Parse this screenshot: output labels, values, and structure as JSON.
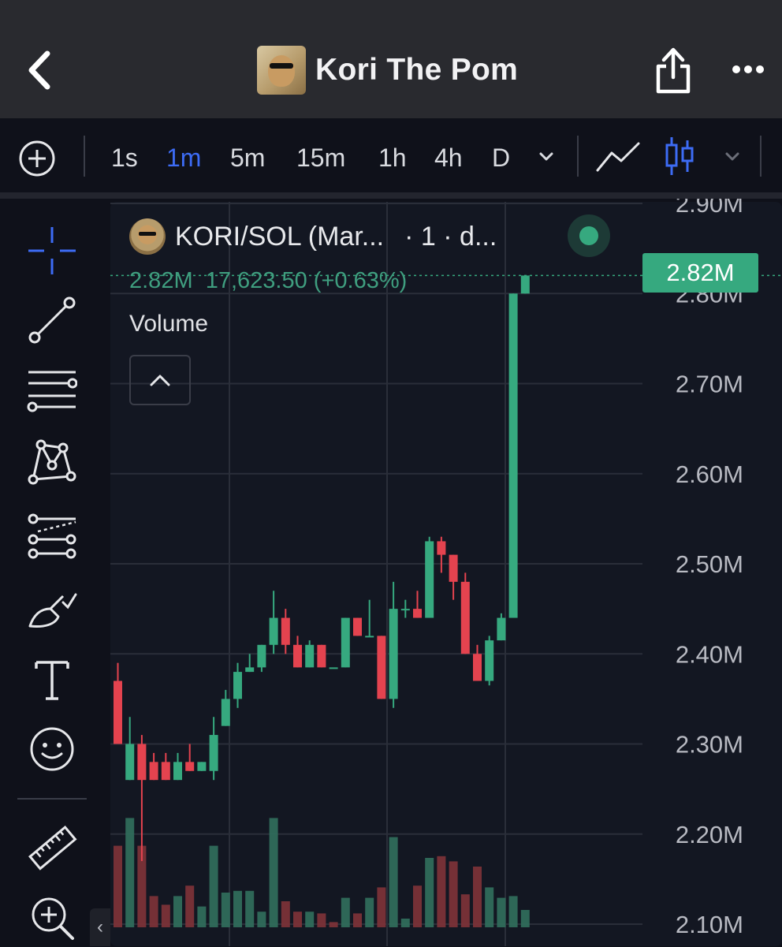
{
  "header": {
    "title": "Kori The Pom",
    "icons": {
      "back": "chevron-left-icon",
      "share": "share-icon",
      "more": "more-horizontal-icon"
    }
  },
  "toolbar": {
    "timeframes": [
      {
        "label": "1s",
        "active": false
      },
      {
        "label": "1m",
        "active": true
      },
      {
        "label": "5m",
        "active": false
      },
      {
        "label": "15m",
        "active": false
      },
      {
        "label": "1h",
        "active": false
      },
      {
        "label": "4h",
        "active": false
      },
      {
        "label": "D",
        "active": false
      }
    ],
    "icons": [
      "plus-circle-icon",
      "chevron-down-icon",
      "line-chart-icon",
      "candlestick-icon",
      "chevron-down-icon"
    ]
  },
  "tools": [
    "crosshair-icon",
    "trend-line-icon",
    "horizontal-lines-icon",
    "pattern-icon",
    "fib-icon",
    "brush-icon",
    "text-icon",
    "emoji-icon",
    "ruler-icon",
    "zoom-in-icon"
  ],
  "legend": {
    "symbol": "KORI/SOL (Mar...",
    "interval": "· 1 · d...",
    "price": "2.82M",
    "change": "17,623.50 (+0.63%)",
    "volume_label": "Volume"
  },
  "last_price": "2.82M",
  "colors": {
    "up": "#36a97f",
    "down": "#e4434f",
    "active": "#3d6cf5",
    "background": "#131722"
  },
  "chart_data": {
    "type": "candlestick",
    "y_ticks": [
      "2.90M",
      "2.80M",
      "2.70M",
      "2.60M",
      "2.50M",
      "2.40M",
      "2.30M",
      "2.20M",
      "2.10M"
    ],
    "ylim": [
      2.1,
      2.92
    ],
    "candles": [
      {
        "o": 2.37,
        "h": 2.39,
        "l": 2.3,
        "c": 2.3
      },
      {
        "o": 2.26,
        "h": 2.33,
        "l": 2.26,
        "c": 2.3
      },
      {
        "o": 2.3,
        "h": 2.31,
        "l": 2.17,
        "c": 2.26
      },
      {
        "o": 2.28,
        "h": 2.29,
        "l": 2.26,
        "c": 2.26
      },
      {
        "o": 2.28,
        "h": 2.29,
        "l": 2.26,
        "c": 2.26
      },
      {
        "o": 2.26,
        "h": 2.29,
        "l": 2.26,
        "c": 2.28
      },
      {
        "o": 2.28,
        "h": 2.3,
        "l": 2.27,
        "c": 2.27
      },
      {
        "o": 2.27,
        "h": 2.28,
        "l": 2.27,
        "c": 2.28
      },
      {
        "o": 2.27,
        "h": 2.33,
        "l": 2.26,
        "c": 2.31
      },
      {
        "o": 2.32,
        "h": 2.36,
        "l": 2.32,
        "c": 2.35
      },
      {
        "o": 2.35,
        "h": 2.39,
        "l": 2.34,
        "c": 2.38
      },
      {
        "o": 2.38,
        "h": 2.4,
        "l": 2.38,
        "c": 2.385
      },
      {
        "o": 2.385,
        "h": 2.41,
        "l": 2.38,
        "c": 2.41
      },
      {
        "o": 2.41,
        "h": 2.47,
        "l": 2.4,
        "c": 2.44
      },
      {
        "o": 2.44,
        "h": 2.45,
        "l": 2.4,
        "c": 2.41
      },
      {
        "o": 2.41,
        "h": 2.42,
        "l": 2.385,
        "c": 2.385
      },
      {
        "o": 2.385,
        "h": 2.415,
        "l": 2.385,
        "c": 2.41
      },
      {
        "o": 2.41,
        "h": 2.41,
        "l": 2.385,
        "c": 2.385
      },
      {
        "o": 2.385,
        "h": 2.385,
        "l": 2.385,
        "c": 2.385
      },
      {
        "o": 2.385,
        "h": 2.44,
        "l": 2.385,
        "c": 2.44
      },
      {
        "o": 2.44,
        "h": 2.44,
        "l": 2.42,
        "c": 2.42
      },
      {
        "o": 2.42,
        "h": 2.46,
        "l": 2.42,
        "c": 2.42
      },
      {
        "o": 2.42,
        "h": 2.42,
        "l": 2.35,
        "c": 2.35
      },
      {
        "o": 2.35,
        "h": 2.48,
        "l": 2.34,
        "c": 2.45
      },
      {
        "o": 2.45,
        "h": 2.46,
        "l": 2.44,
        "c": 2.45
      },
      {
        "o": 2.45,
        "h": 2.47,
        "l": 2.44,
        "c": 2.44
      },
      {
        "o": 2.44,
        "h": 2.53,
        "l": 2.44,
        "c": 2.525
      },
      {
        "o": 2.525,
        "h": 2.53,
        "l": 2.49,
        "c": 2.51
      },
      {
        "o": 2.51,
        "h": 2.51,
        "l": 2.46,
        "c": 2.48
      },
      {
        "o": 2.48,
        "h": 2.49,
        "l": 2.4,
        "c": 2.4
      },
      {
        "o": 2.4,
        "h": 2.41,
        "l": 2.37,
        "c": 2.37
      },
      {
        "o": 2.37,
        "h": 2.42,
        "l": 2.365,
        "c": 2.415
      },
      {
        "o": 2.415,
        "h": 2.445,
        "l": 2.415,
        "c": 2.44
      },
      {
        "o": 2.44,
        "h": 2.8,
        "l": 2.44,
        "c": 2.8
      },
      {
        "o": 2.8,
        "h": 2.82,
        "l": 2.8,
        "c": 2.82
      }
    ],
    "volume": [
      {
        "v": 0.47,
        "up": false
      },
      {
        "v": 0.63,
        "up": true
      },
      {
        "v": 0.47,
        "up": false
      },
      {
        "v": 0.18,
        "up": false
      },
      {
        "v": 0.13,
        "up": false
      },
      {
        "v": 0.18,
        "up": true
      },
      {
        "v": 0.24,
        "up": false
      },
      {
        "v": 0.12,
        "up": true
      },
      {
        "v": 0.47,
        "up": true
      },
      {
        "v": 0.2,
        "up": true
      },
      {
        "v": 0.21,
        "up": true
      },
      {
        "v": 0.21,
        "up": true
      },
      {
        "v": 0.09,
        "up": true
      },
      {
        "v": 0.63,
        "up": true
      },
      {
        "v": 0.15,
        "up": false
      },
      {
        "v": 0.09,
        "up": false
      },
      {
        "v": 0.09,
        "up": true
      },
      {
        "v": 0.08,
        "up": false
      },
      {
        "v": 0.03,
        "up": false
      },
      {
        "v": 0.17,
        "up": true
      },
      {
        "v": 0.08,
        "up": false
      },
      {
        "v": 0.17,
        "up": true
      },
      {
        "v": 0.23,
        "up": false
      },
      {
        "v": 0.52,
        "up": true
      },
      {
        "v": 0.05,
        "up": true
      },
      {
        "v": 0.24,
        "up": false
      },
      {
        "v": 0.4,
        "up": true
      },
      {
        "v": 0.41,
        "up": false
      },
      {
        "v": 0.38,
        "up": false
      },
      {
        "v": 0.19,
        "up": false
      },
      {
        "v": 0.35,
        "up": false
      },
      {
        "v": 0.23,
        "up": true
      },
      {
        "v": 0.17,
        "up": true
      },
      {
        "v": 0.18,
        "up": true
      },
      {
        "v": 0.1,
        "up": true
      }
    ]
  }
}
